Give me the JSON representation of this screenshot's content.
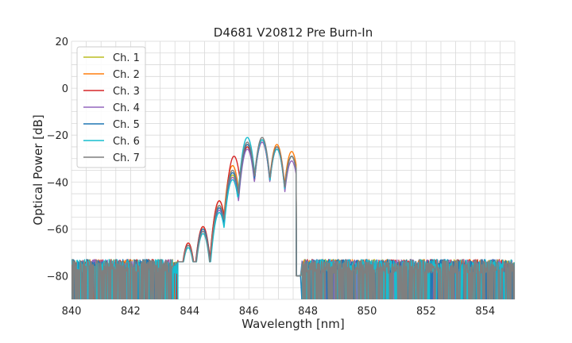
{
  "chart_data": {
    "type": "line",
    "title": "D4681 V20812 Pre Burn-In",
    "xlabel": "Wavelength [nm]",
    "ylabel": "Optical Power [dB]",
    "xlim": [
      840,
      855
    ],
    "ylim": [
      -90,
      20
    ],
    "xticks": [
      840,
      842,
      844,
      846,
      848,
      850,
      852,
      854
    ],
    "yticks": [
      20,
      0,
      -20,
      -40,
      -60,
      -80
    ],
    "x_minor_step": 0.5,
    "y_minor_step": 5,
    "grid": true,
    "legend_position": "top-left",
    "noise_floor": {
      "x_range_left": [
        840,
        843.4
      ],
      "x_range_right": [
        847.8,
        855
      ],
      "level_range": [
        -90,
        -73
      ]
    },
    "series": [
      {
        "name": "Ch. 1",
        "color": "#bcbd22",
        "peaks": [
          [
            843.95,
            -67
          ],
          [
            844.45,
            -60
          ],
          [
            845.0,
            -50
          ],
          [
            845.45,
            -37
          ],
          [
            845.95,
            -25
          ],
          [
            846.45,
            -22
          ],
          [
            846.95,
            -25
          ],
          [
            847.45,
            -29
          ]
        ]
      },
      {
        "name": "Ch. 2",
        "color": "#ff7f0e",
        "peaks": [
          [
            843.95,
            -66
          ],
          [
            844.45,
            -59
          ],
          [
            845.0,
            -48
          ],
          [
            845.45,
            -33
          ],
          [
            845.95,
            -24
          ],
          [
            846.45,
            -22
          ],
          [
            846.95,
            -24
          ],
          [
            847.45,
            -27
          ]
        ]
      },
      {
        "name": "Ch. 3",
        "color": "#d62728",
        "peaks": [
          [
            843.95,
            -66
          ],
          [
            844.45,
            -59
          ],
          [
            845.0,
            -48
          ],
          [
            845.5,
            -29
          ],
          [
            845.95,
            -25
          ],
          [
            846.45,
            -23
          ],
          [
            846.95,
            -25
          ],
          [
            847.45,
            -29
          ]
        ]
      },
      {
        "name": "Ch. 4",
        "color": "#9467bd",
        "peaks": [
          [
            843.95,
            -67
          ],
          [
            844.45,
            -61
          ],
          [
            845.0,
            -52
          ],
          [
            845.45,
            -38
          ],
          [
            845.95,
            -26
          ],
          [
            846.45,
            -23
          ],
          [
            846.95,
            -26
          ],
          [
            847.45,
            -31
          ]
        ]
      },
      {
        "name": "Ch. 5",
        "color": "#1f77b4",
        "peaks": [
          [
            843.95,
            -67
          ],
          [
            844.45,
            -60
          ],
          [
            845.0,
            -51
          ],
          [
            845.45,
            -36
          ],
          [
            845.95,
            -24
          ],
          [
            846.45,
            -22
          ],
          [
            846.95,
            -25
          ],
          [
            847.45,
            -29
          ]
        ]
      },
      {
        "name": "Ch. 6",
        "color": "#17becf",
        "peaks": [
          [
            843.95,
            -68
          ],
          [
            844.45,
            -62
          ],
          [
            845.0,
            -53
          ],
          [
            845.45,
            -39
          ],
          [
            845.95,
            -21
          ],
          [
            846.45,
            -22
          ],
          [
            846.95,
            -26
          ],
          [
            847.45,
            -29
          ]
        ]
      },
      {
        "name": "Ch. 7",
        "color": "#7f7f7f",
        "peaks": [
          [
            843.95,
            -67
          ],
          [
            844.45,
            -61
          ],
          [
            845.0,
            -50
          ],
          [
            845.45,
            -35
          ],
          [
            845.95,
            -23
          ],
          [
            846.45,
            -21
          ],
          [
            846.95,
            -25
          ],
          [
            847.45,
            -29
          ]
        ]
      }
    ]
  }
}
